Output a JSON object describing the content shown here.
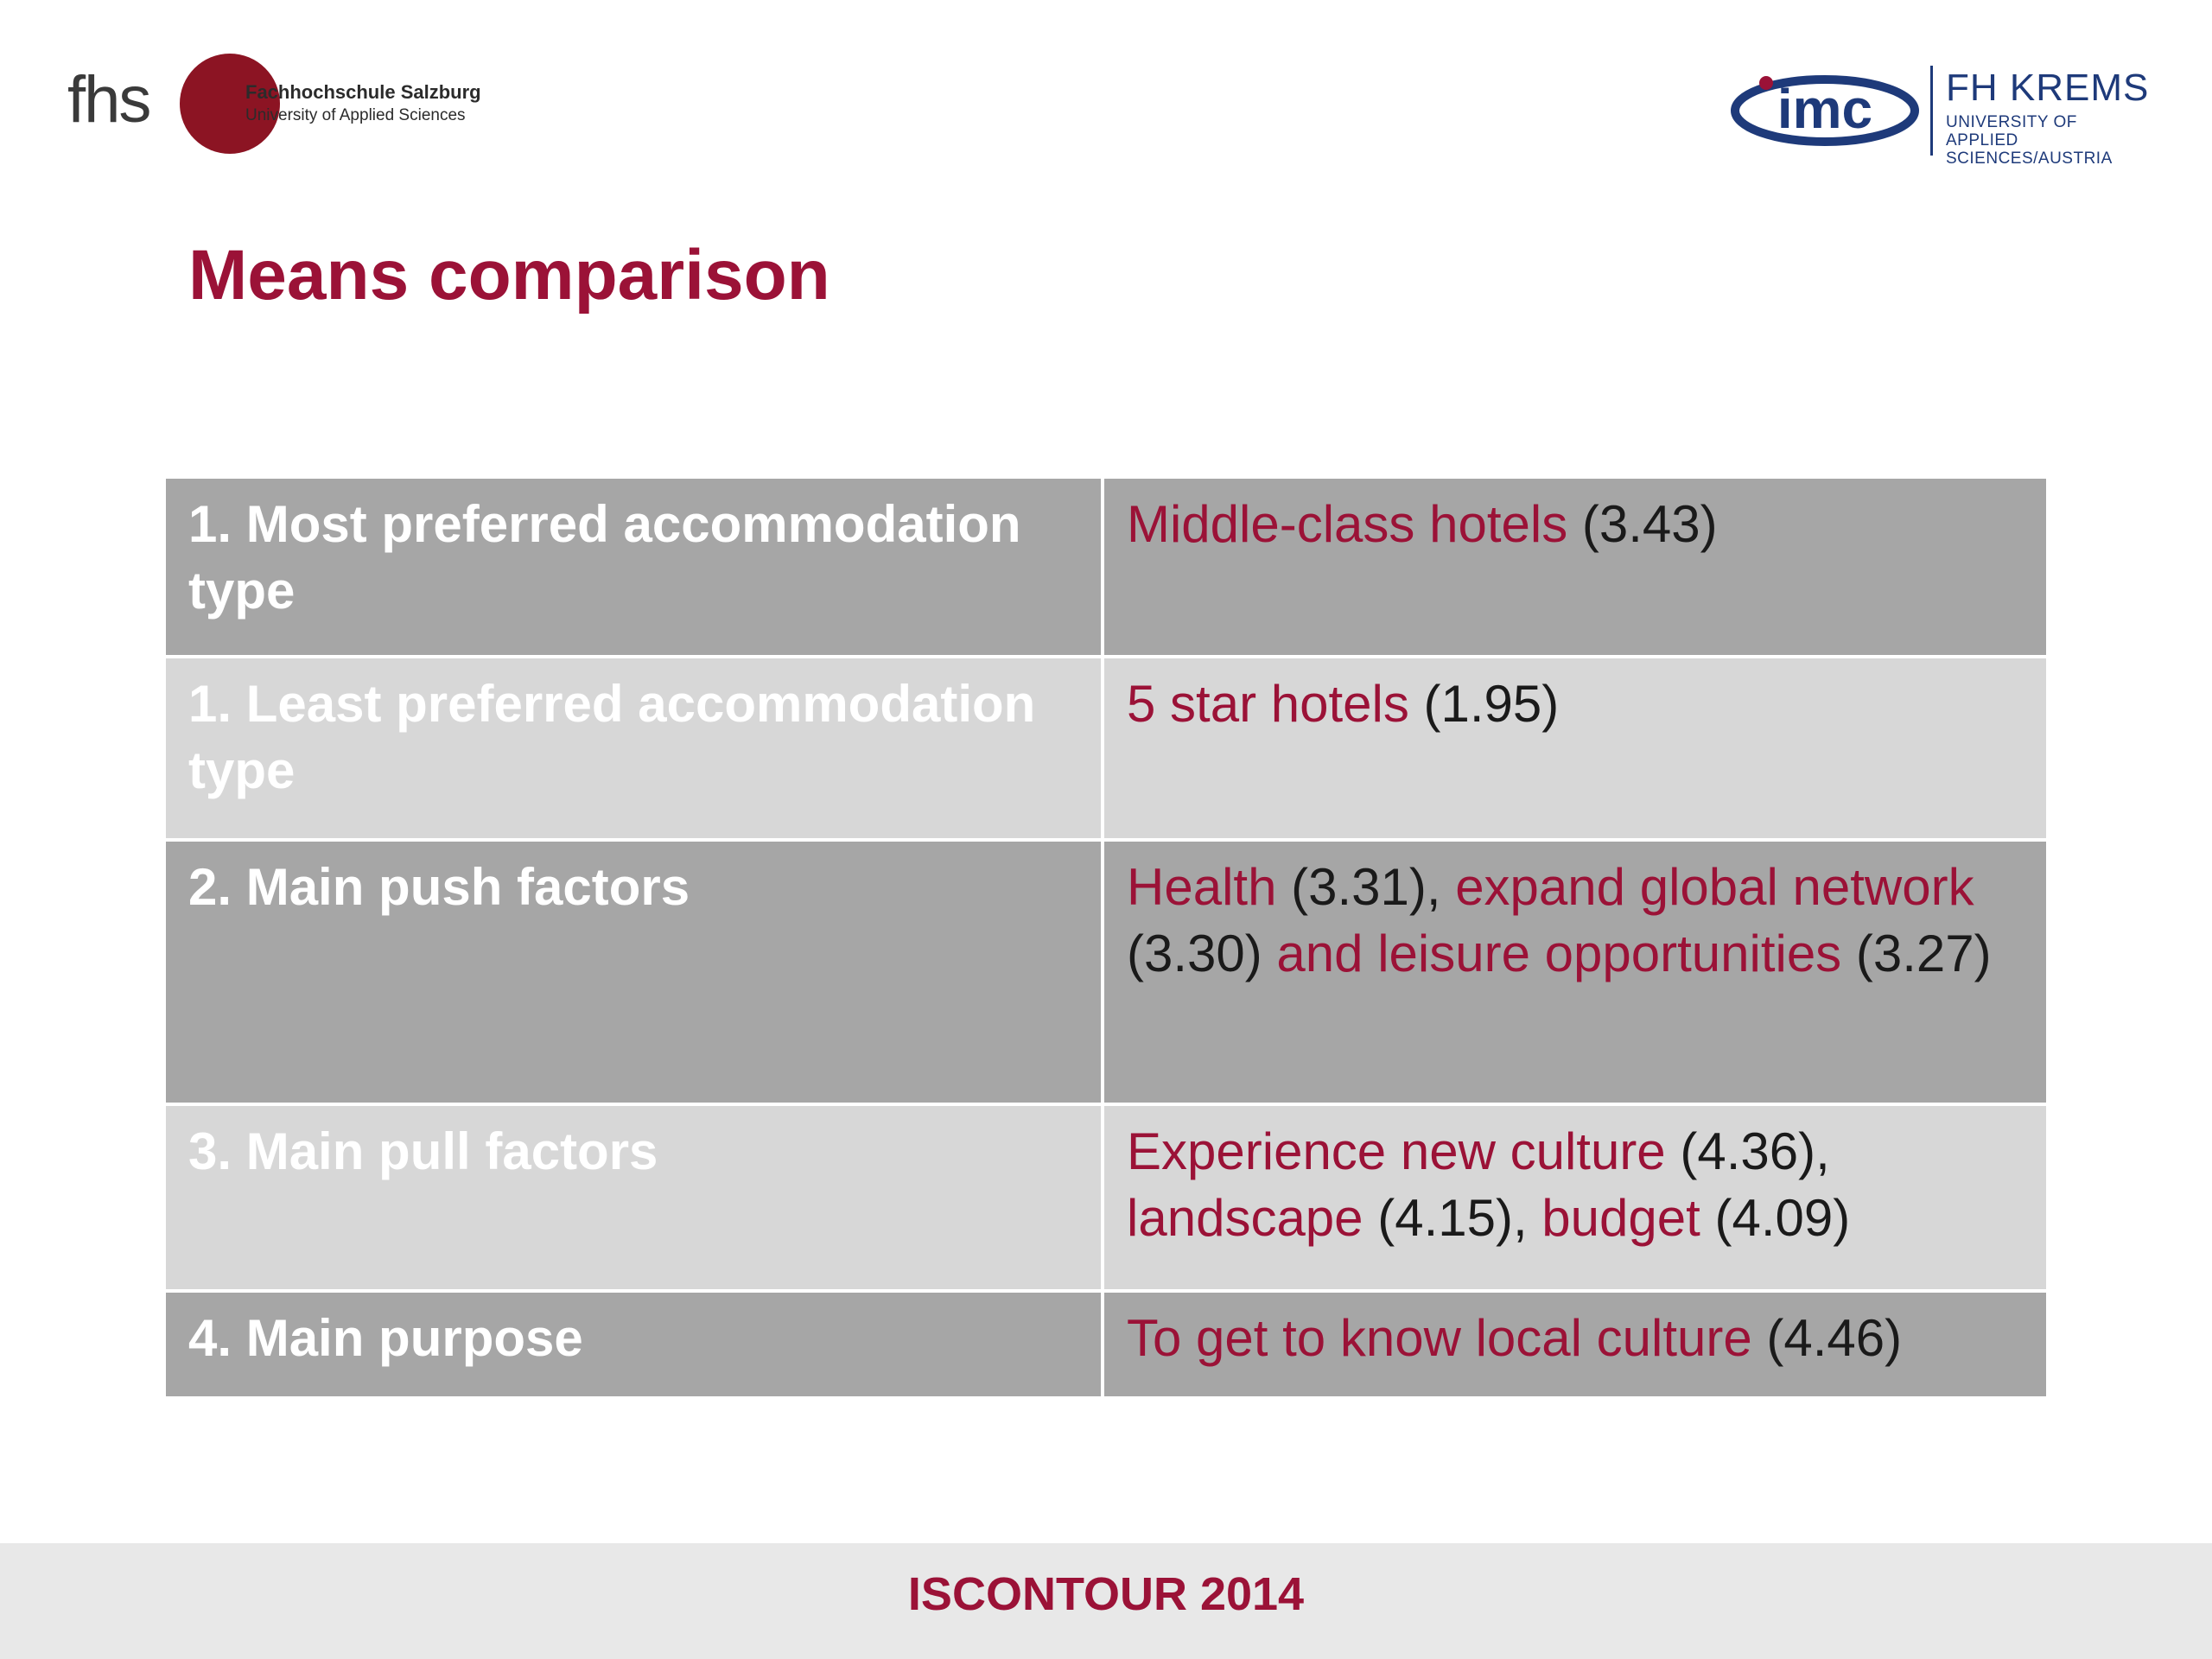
{
  "colors": {
    "accent": "#9b1237",
    "row_dark": "#a6a6a6",
    "row_light": "#d7d7d7",
    "footer_bg": "#e8e8e8",
    "imc_blue": "#1e3a7a"
  },
  "logos": {
    "fhs": {
      "letters": "fhs",
      "name": "Fachhochschule Salzburg",
      "subtitle": "University of Applied Sciences"
    },
    "imc": {
      "mark": "imc",
      "name": "FH KREMS",
      "subtitle": "UNIVERSITY OF APPLIED SCIENCES/AUSTRIA"
    }
  },
  "title": "Means comparison",
  "table": {
    "rows": [
      {
        "label": "1. Most preferred accommodation type",
        "value": [
          {
            "text": "Middle-class hotels",
            "type": "hl"
          },
          {
            "text": " (3.43)",
            "type": "num"
          }
        ]
      },
      {
        "label": "1. Least preferred accommodation type",
        "value": [
          {
            "text": "5 star hotels",
            "type": "hl"
          },
          {
            "text": " (1.95)",
            "type": "num"
          }
        ]
      },
      {
        "label": "2. Main push factors",
        "value": [
          {
            "text": "Health",
            "type": "hl"
          },
          {
            "text": " (3.31), ",
            "type": "num"
          },
          {
            "text": "expand global network",
            "type": "hl"
          },
          {
            "text": " (3.30) ",
            "type": "num"
          },
          {
            "text": "and leisure opportunities",
            "type": "hl"
          },
          {
            "text": " (3.27)",
            "type": "num"
          }
        ]
      },
      {
        "label": "3. Main pull factors",
        "value": [
          {
            "text": "Experience new culture",
            "type": "hl"
          },
          {
            "text": " (4.36), ",
            "type": "num"
          },
          {
            "text": "landscape",
            "type": "hl"
          },
          {
            "text": " (4.15), ",
            "type": "num"
          },
          {
            "text": "budget",
            "type": "hl"
          },
          {
            "text": " (4.09)",
            "type": "num"
          }
        ]
      },
      {
        "label": "4. Main purpose",
        "value": [
          {
            "text": "To get to know local culture",
            "type": "hl"
          },
          {
            "text": " (4.46)",
            "type": "num"
          }
        ]
      }
    ]
  },
  "footer": {
    "text": "ISCONTOUR 2014"
  }
}
